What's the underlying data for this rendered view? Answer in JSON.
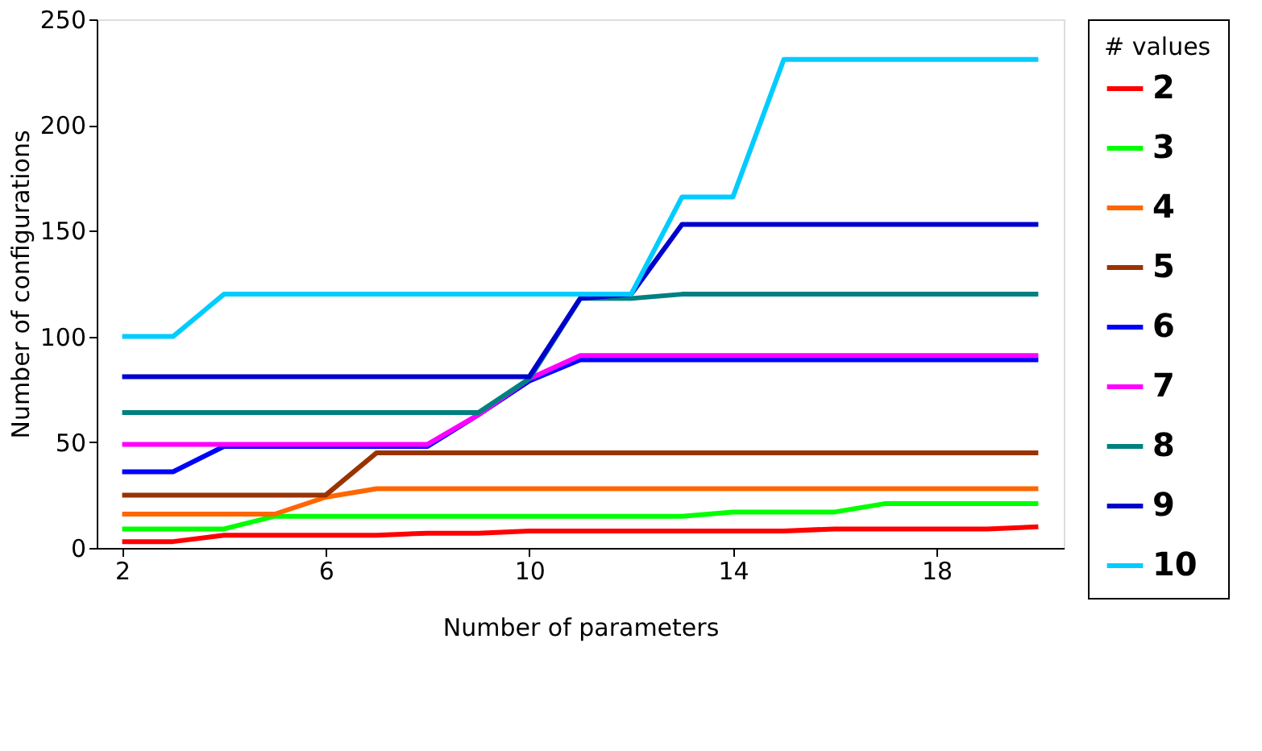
{
  "chart_data": {
    "type": "line",
    "xlabel": "Number of parameters",
    "ylabel": "Number of configurations",
    "legend_title": "# values",
    "legend": "right",
    "grid": false,
    "marker": "none",
    "line_style": "solid",
    "x": [
      2,
      3,
      4,
      5,
      6,
      7,
      8,
      9,
      10,
      11,
      12,
      13,
      14,
      15,
      16,
      17,
      18,
      19,
      20
    ],
    "xlim": [
      1.5,
      20.5
    ],
    "xticks": [
      2,
      6,
      10,
      14,
      18
    ],
    "ylim": [
      0,
      250
    ],
    "yticks": [
      0,
      50,
      100,
      150,
      200,
      250
    ],
    "series": [
      {
        "name": "2",
        "color": "#ff0000",
        "values": [
          3,
          3,
          6,
          6,
          6,
          6,
          7,
          7,
          8,
          8,
          8,
          8,
          8,
          8,
          9,
          9,
          9,
          9,
          10
        ]
      },
      {
        "name": "3",
        "color": "#00ff00",
        "values": [
          9,
          9,
          9,
          15,
          15,
          15,
          15,
          15,
          15,
          15,
          15,
          15,
          17,
          17,
          17,
          21,
          21,
          21,
          21
        ]
      },
      {
        "name": "4",
        "color": "#ff6600",
        "values": [
          16,
          16,
          16,
          16,
          24,
          28,
          28,
          28,
          28,
          28,
          28,
          28,
          28,
          28,
          28,
          28,
          28,
          28,
          28
        ]
      },
      {
        "name": "5",
        "color": "#993300",
        "values": [
          25,
          25,
          25,
          25,
          25,
          45,
          45,
          45,
          45,
          45,
          45,
          45,
          45,
          45,
          45,
          45,
          45,
          45,
          45
        ]
      },
      {
        "name": "6",
        "color": "#0000ff",
        "values": [
          36,
          36,
          48,
          48,
          48,
          48,
          48,
          63,
          79,
          89,
          89,
          89,
          89,
          89,
          89,
          89,
          89,
          89,
          89
        ]
      },
      {
        "name": "7",
        "color": "#ff00ff",
        "values": [
          49,
          49,
          49,
          49,
          49,
          49,
          49,
          63,
          80,
          91,
          91,
          91,
          91,
          91,
          91,
          91,
          91,
          91,
          91
        ]
      },
      {
        "name": "8",
        "color": "#008080",
        "values": [
          64,
          64,
          64,
          64,
          64,
          64,
          64,
          64,
          80,
          118,
          118,
          120,
          120,
          120,
          120,
          120,
          120,
          120,
          120
        ]
      },
      {
        "name": "9",
        "color": "#0000cc",
        "values": [
          81,
          81,
          81,
          81,
          81,
          81,
          81,
          81,
          81,
          118,
          120,
          153,
          153,
          153,
          153,
          153,
          153,
          153,
          153
        ]
      },
      {
        "name": "10",
        "color": "#00ccff",
        "values": [
          100,
          100,
          120,
          120,
          120,
          120,
          120,
          120,
          120,
          120,
          120,
          166,
          166,
          231,
          231,
          231,
          231,
          231,
          231
        ]
      }
    ]
  }
}
